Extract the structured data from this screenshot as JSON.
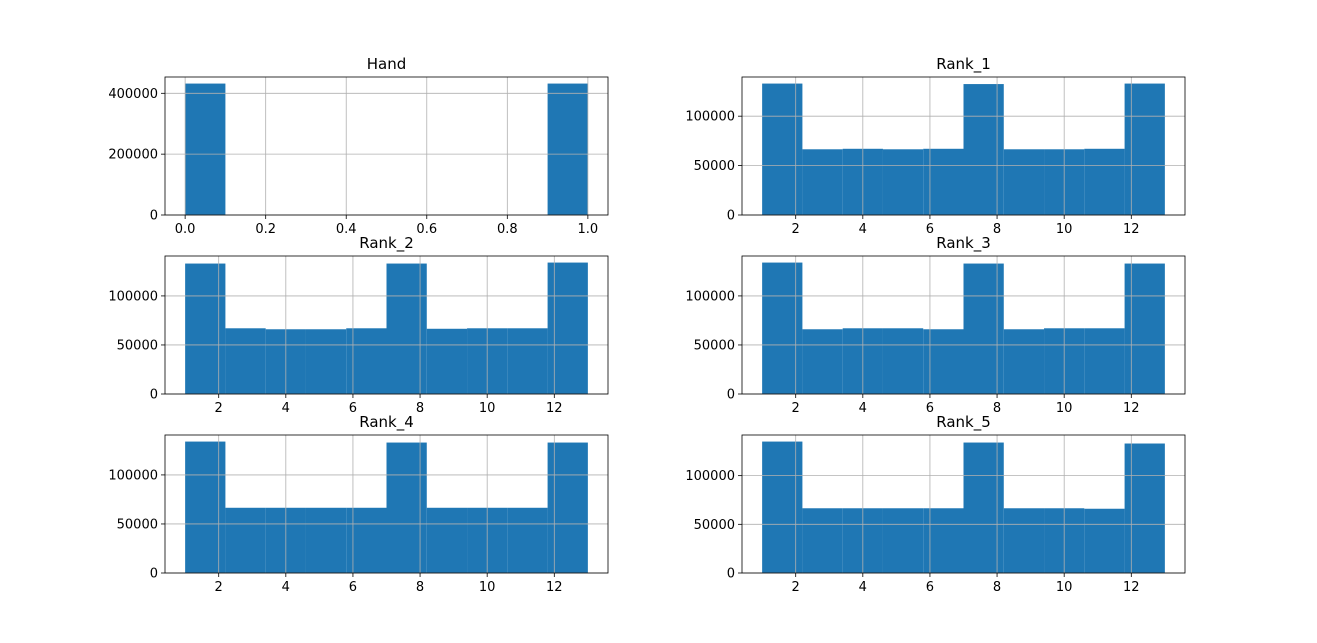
{
  "colors": {
    "bar": "#1f77b4",
    "grid": "#b0b0b0",
    "axis": "#000000",
    "background": "#ffffff"
  },
  "chart_data": [
    {
      "type": "bar",
      "title": "Hand",
      "xlabel": "",
      "ylabel": "",
      "bin_edges": [
        0,
        0.1,
        0.2,
        0.3,
        0.4,
        0.5,
        0.6,
        0.7,
        0.8,
        0.9,
        1.0
      ],
      "values": [
        432000,
        0,
        0,
        0,
        0,
        0,
        0,
        0,
        0,
        432000
      ],
      "xlim": [
        -0.05,
        1.05
      ],
      "ylim": [
        0,
        453600
      ],
      "xticks": [
        0.0,
        0.2,
        0.4,
        0.6,
        0.8,
        1.0
      ],
      "xtick_labels": [
        "0.0",
        "0.2",
        "0.4",
        "0.6",
        "0.8",
        "1.0"
      ],
      "yticks": [
        0,
        200000,
        400000
      ],
      "ytick_labels": [
        "0",
        "200000",
        "400000"
      ],
      "grid": true
    },
    {
      "type": "bar",
      "title": "Rank_1",
      "xlabel": "",
      "ylabel": "",
      "bin_edges": [
        1,
        2.2,
        3.4,
        4.6,
        5.8,
        7.0,
        8.2,
        9.4,
        10.6,
        11.8,
        13.0
      ],
      "values": [
        133000,
        66500,
        67000,
        66500,
        67000,
        132500,
        66500,
        66500,
        67000,
        133000
      ],
      "xlim": [
        0.4,
        13.6
      ],
      "ylim": [
        0,
        139650
      ],
      "xticks": [
        2,
        4,
        6,
        8,
        10,
        12
      ],
      "xtick_labels": [
        "2",
        "4",
        "6",
        "8",
        "10",
        "12"
      ],
      "yticks": [
        0,
        50000,
        100000
      ],
      "ytick_labels": [
        "0",
        "50000",
        "100000"
      ],
      "grid": true
    },
    {
      "type": "bar",
      "title": "Rank_2",
      "xlabel": "",
      "ylabel": "",
      "bin_edges": [
        1,
        2.2,
        3.4,
        4.6,
        5.8,
        7.0,
        8.2,
        9.4,
        10.6,
        11.8,
        13.0
      ],
      "values": [
        133000,
        67000,
        66000,
        66000,
        67000,
        133000,
        66500,
        67000,
        67000,
        134000
      ],
      "xlim": [
        0.4,
        13.6
      ],
      "ylim": [
        0,
        140700
      ],
      "xticks": [
        2,
        4,
        6,
        8,
        10,
        12
      ],
      "xtick_labels": [
        "2",
        "4",
        "6",
        "8",
        "10",
        "12"
      ],
      "yticks": [
        0,
        50000,
        100000
      ],
      "ytick_labels": [
        "0",
        "50000",
        "100000"
      ],
      "grid": true
    },
    {
      "type": "bar",
      "title": "Rank_3",
      "xlabel": "",
      "ylabel": "",
      "bin_edges": [
        1,
        2.2,
        3.4,
        4.6,
        5.8,
        7.0,
        8.2,
        9.4,
        10.6,
        11.8,
        13.0
      ],
      "values": [
        134000,
        66000,
        67000,
        67000,
        66000,
        133000,
        66000,
        67000,
        67000,
        133000
      ],
      "xlim": [
        0.4,
        13.6
      ],
      "ylim": [
        0,
        140700
      ],
      "xticks": [
        2,
        4,
        6,
        8,
        10,
        12
      ],
      "xtick_labels": [
        "2",
        "4",
        "6",
        "8",
        "10",
        "12"
      ],
      "yticks": [
        0,
        50000,
        100000
      ],
      "ytick_labels": [
        "0",
        "50000",
        "100000"
      ],
      "grid": true
    },
    {
      "type": "bar",
      "title": "Rank_4",
      "xlabel": "",
      "ylabel": "",
      "bin_edges": [
        1,
        2.2,
        3.4,
        4.6,
        5.8,
        7.0,
        8.2,
        9.4,
        10.6,
        11.8,
        13.0
      ],
      "values": [
        134000,
        66500,
        66500,
        66500,
        66500,
        133000,
        66500,
        66500,
        66500,
        133000
      ],
      "xlim": [
        0.4,
        13.6
      ],
      "ylim": [
        0,
        140700
      ],
      "xticks": [
        2,
        4,
        6,
        8,
        10,
        12
      ],
      "xtick_labels": [
        "2",
        "4",
        "6",
        "8",
        "10",
        "12"
      ],
      "yticks": [
        0,
        50000,
        100000
      ],
      "ytick_labels": [
        "0",
        "50000",
        "100000"
      ],
      "grid": true
    },
    {
      "type": "bar",
      "title": "Rank_5",
      "xlabel": "",
      "ylabel": "",
      "bin_edges": [
        1,
        2.2,
        3.4,
        4.6,
        5.8,
        7.0,
        8.2,
        9.4,
        10.6,
        11.8,
        13.0
      ],
      "values": [
        135000,
        66500,
        66500,
        66500,
        66500,
        134000,
        66500,
        66500,
        66000,
        133000
      ],
      "xlim": [
        0.4,
        13.6
      ],
      "ylim": [
        0,
        141750
      ],
      "xticks": [
        2,
        4,
        6,
        8,
        10,
        12
      ],
      "xtick_labels": [
        "2",
        "4",
        "6",
        "8",
        "10",
        "12"
      ],
      "yticks": [
        0,
        50000,
        100000
      ],
      "ytick_labels": [
        "0",
        "50000",
        "100000"
      ],
      "grid": true
    }
  ]
}
